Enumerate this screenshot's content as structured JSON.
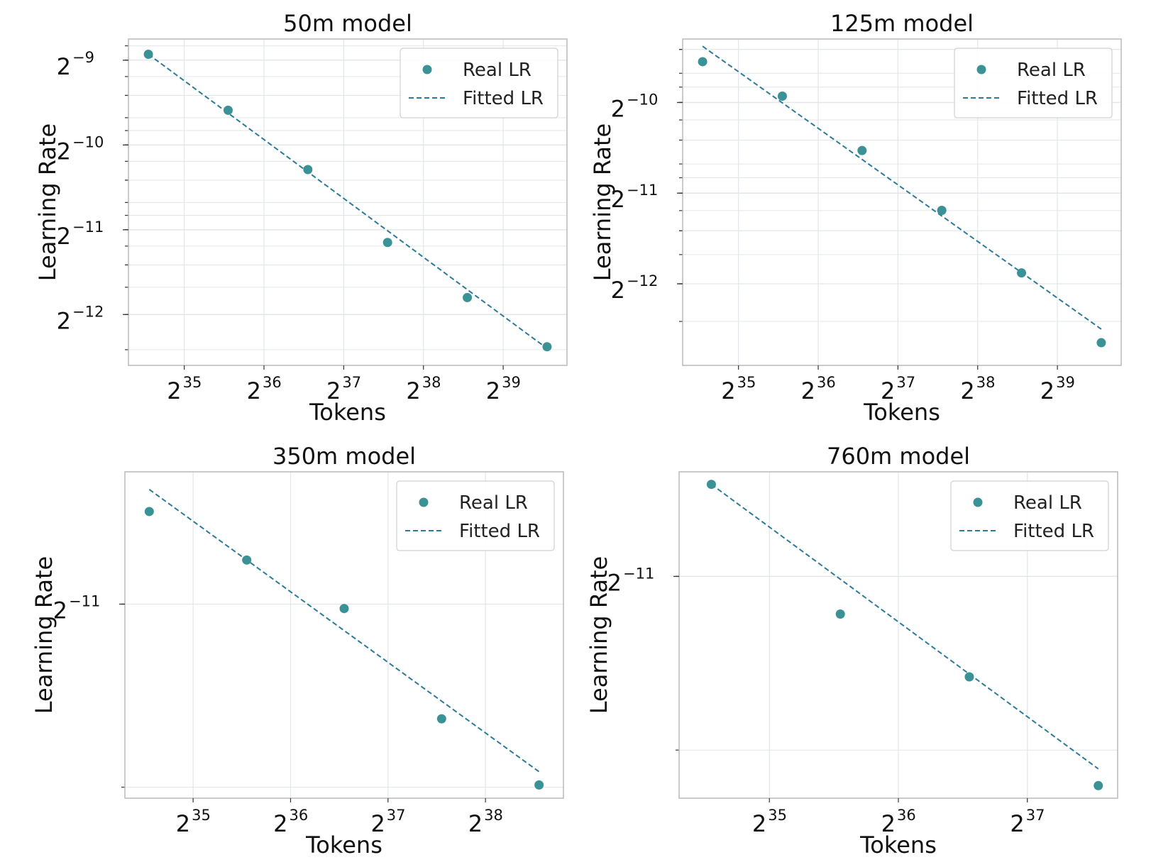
{
  "colors": {
    "marker": "#3a9196",
    "fit_line": "#2b7a9a",
    "grid": "#e2e6ea",
    "frame": "#b5b5b5"
  },
  "chart_data": [
    {
      "type": "scatter",
      "title": "50m model",
      "xlabel": "Tokens",
      "ylabel": "Learning Rate",
      "x_scale": "log2",
      "y_scale": "log2",
      "xlim_exp": [
        34.3,
        39.8
      ],
      "ylim_exp": [
        -12.6,
        -8.75
      ],
      "x_ticks": [
        {
          "base": "2",
          "exp": "35",
          "value": 35
        },
        {
          "base": "2",
          "exp": "36",
          "value": 36
        },
        {
          "base": "2",
          "exp": "37",
          "value": 37
        },
        {
          "base": "2",
          "exp": "38",
          "value": 38
        },
        {
          "base": "2",
          "exp": "39",
          "value": 39
        }
      ],
      "y_ticks": [
        {
          "base": "2",
          "exp": "−9",
          "value": -9
        },
        {
          "base": "2",
          "exp": "−10",
          "value": -10
        },
        {
          "base": "2",
          "exp": "−11",
          "value": -11
        },
        {
          "base": "2",
          "exp": "−12",
          "value": -12
        }
      ],
      "series": [
        {
          "name": "Real LR",
          "kind": "points",
          "x_exp": [
            34.55,
            35.55,
            36.55,
            37.55,
            38.55,
            39.55
          ],
          "y_exp": [
            -8.93,
            -9.59,
            -10.29,
            -11.15,
            -11.8,
            -12.38
          ]
        },
        {
          "name": "Fitted LR",
          "kind": "dashed-line",
          "x_exp": [
            34.55,
            39.55
          ],
          "y_exp": [
            -8.93,
            -12.4
          ]
        }
      ],
      "legend": {
        "position": "top-right",
        "entries": [
          "Real LR",
          "Fitted LR"
        ]
      },
      "grid": true
    },
    {
      "type": "scatter",
      "title": "125m model",
      "xlabel": "Tokens",
      "ylabel": "Learning Rate",
      "x_scale": "log2",
      "y_scale": "log2",
      "xlim_exp": [
        34.3,
        39.8
      ],
      "ylim_exp": [
        -12.9,
        -9.3
      ],
      "x_ticks": [
        {
          "base": "2",
          "exp": "35",
          "value": 35
        },
        {
          "base": "2",
          "exp": "36",
          "value": 36
        },
        {
          "base": "2",
          "exp": "37",
          "value": 37
        },
        {
          "base": "2",
          "exp": "38",
          "value": 38
        },
        {
          "base": "2",
          "exp": "39",
          "value": 39
        }
      ],
      "y_ticks": [
        {
          "base": "2",
          "exp": "−10",
          "value": -10
        },
        {
          "base": "2",
          "exp": "−11",
          "value": -11
        },
        {
          "base": "2",
          "exp": "−12",
          "value": -12
        }
      ],
      "series": [
        {
          "name": "Real LR",
          "kind": "points",
          "x_exp": [
            34.55,
            35.55,
            36.55,
            37.55,
            38.55,
            39.55
          ],
          "y_exp": [
            -9.55,
            -9.93,
            -10.53,
            -11.19,
            -11.88,
            -12.65
          ]
        },
        {
          "name": "Fitted LR",
          "kind": "dashed-line",
          "x_exp": [
            34.55,
            39.55
          ],
          "y_exp": [
            -9.38,
            -12.5
          ]
        }
      ],
      "legend": {
        "position": "top-right",
        "entries": [
          "Real LR",
          "Fitted LR"
        ]
      },
      "grid": true
    },
    {
      "type": "scatter",
      "title": "350m model",
      "xlabel": "Tokens",
      "ylabel": "Learning Rate",
      "x_scale": "log2",
      "y_scale": "log2",
      "xlim_exp": [
        34.3,
        38.8
      ],
      "ylim_exp": [
        -11.44,
        -10.7
      ],
      "x_ticks": [
        {
          "base": "2",
          "exp": "35",
          "value": 35
        },
        {
          "base": "2",
          "exp": "36",
          "value": 36
        },
        {
          "base": "2",
          "exp": "37",
          "value": 37
        },
        {
          "base": "2",
          "exp": "38",
          "value": 38
        }
      ],
      "y_ticks": [
        {
          "base": "2",
          "exp": "−11",
          "value": -11
        }
      ],
      "series": [
        {
          "name": "Real LR",
          "kind": "points",
          "x_exp": [
            34.55,
            35.55,
            36.55,
            37.55,
            38.55
          ],
          "y_exp": [
            -10.79,
            -10.9,
            -11.01,
            -11.26,
            -11.41
          ]
        },
        {
          "name": "Fitted LR",
          "kind": "dashed-line",
          "x_exp": [
            34.55,
            38.55
          ],
          "y_exp": [
            -10.74,
            -11.38
          ]
        }
      ],
      "legend": {
        "position": "top-right",
        "entries": [
          "Real LR",
          "Fitted LR"
        ]
      },
      "grid": true
    },
    {
      "type": "scatter",
      "title": "760m model",
      "xlabel": "Tokens",
      "ylabel": "Learning Rate",
      "x_scale": "log2",
      "y_scale": "log2",
      "xlim_exp": [
        34.3,
        37.7
      ],
      "ylim_exp": [
        -11.53,
        -10.75
      ],
      "x_ticks": [
        {
          "base": "2",
          "exp": "35",
          "value": 35
        },
        {
          "base": "2",
          "exp": "36",
          "value": 36
        },
        {
          "base": "2",
          "exp": "37",
          "value": 37
        }
      ],
      "y_ticks": [
        {
          "base": "2",
          "exp": "−11",
          "value": -11
        }
      ],
      "series": [
        {
          "name": "Real LR",
          "kind": "points",
          "x_exp": [
            34.55,
            35.55,
            36.55,
            37.55
          ],
          "y_exp": [
            -10.78,
            -11.09,
            -11.24,
            -11.5
          ]
        },
        {
          "name": "Fitted LR",
          "kind": "dashed-line",
          "x_exp": [
            34.55,
            37.55
          ],
          "y_exp": [
            -10.78,
            -11.46
          ]
        }
      ],
      "legend": {
        "position": "top-right",
        "entries": [
          "Real LR",
          "Fitted LR"
        ]
      },
      "grid": true
    }
  ]
}
